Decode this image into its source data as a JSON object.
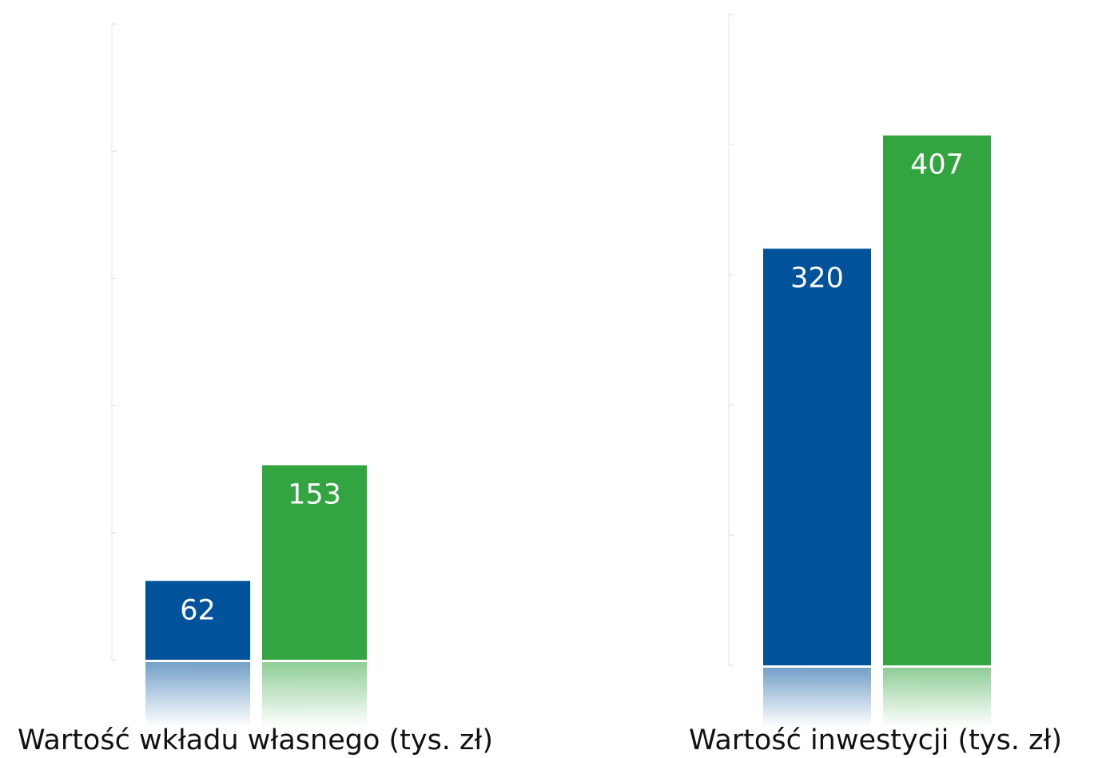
{
  "chart_data": [
    {
      "type": "bar",
      "title": "Wartość wkładu własnego (tys. zł)",
      "categories": [
        null,
        null
      ],
      "values": [
        62,
        153
      ],
      "colors": [
        "#00529b",
        "#33a540"
      ],
      "ylim": [
        0,
        500
      ],
      "yticks": [
        0,
        100,
        200,
        300,
        400,
        500
      ]
    },
    {
      "type": "bar",
      "title": "Wartość inwestycji (tys. zł)",
      "categories": [
        null,
        null
      ],
      "values": [
        320,
        407
      ],
      "colors": [
        "#00529b",
        "#33a540"
      ],
      "ylim": [
        0,
        500
      ],
      "yticks": [
        0,
        100,
        200,
        300,
        400,
        500
      ]
    }
  ]
}
